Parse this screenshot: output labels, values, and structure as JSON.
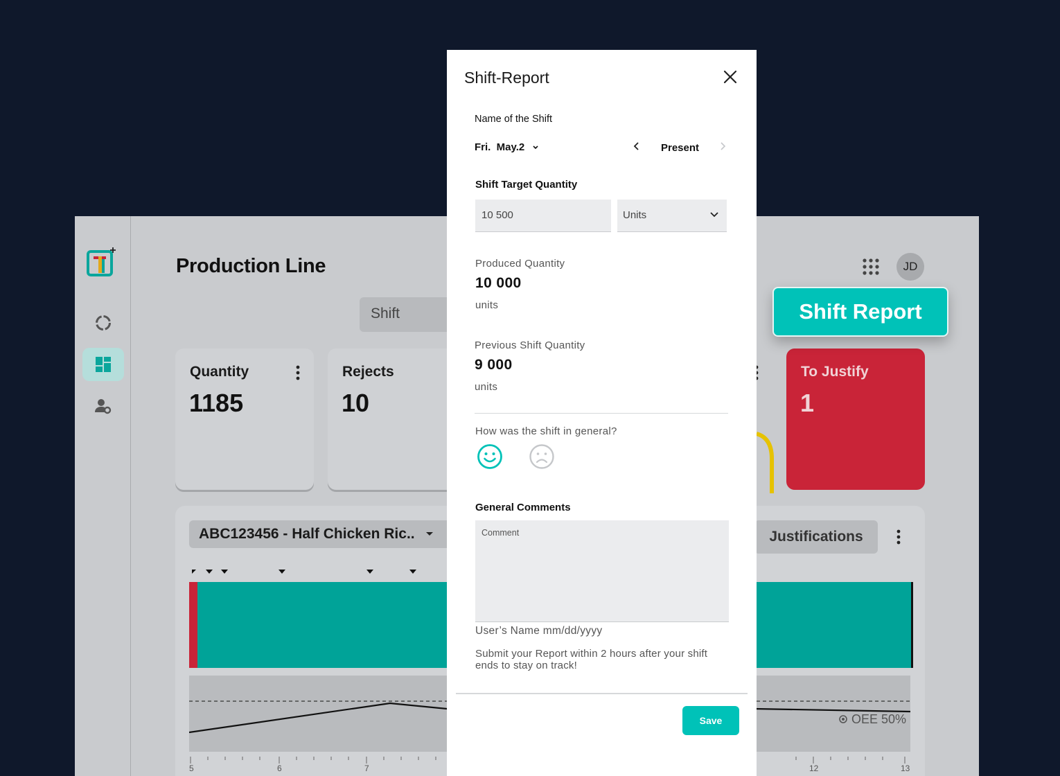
{
  "background_app": {
    "page_title": "Production Line",
    "avatar_initials": "JD",
    "shift_filter": "Shift",
    "cards": [
      {
        "title": "Quantity",
        "value": "1185"
      },
      {
        "title": "Rejects",
        "value": "10"
      },
      {
        "title": "To Justify",
        "value": "1"
      }
    ],
    "floating_button": "Shift Report",
    "product_select": "ABC123456 - Half Chicken Ric..",
    "justifications_button": "Justifications",
    "oee_label": "OEE 50%",
    "time_ticks": [
      "5",
      "6",
      "7",
      "12",
      "13"
    ],
    "sidebar_icons": [
      "app-logo",
      "progress-ring-icon",
      "dashboard-icon",
      "user-settings-icon"
    ]
  },
  "modal": {
    "title": "Shift-Report",
    "shift_name_label": "Name of the Shift",
    "date": "Fri.  May.2",
    "period": "Present",
    "target_label": "Shift Target Quantity",
    "target_value": "10 500",
    "unit": "Units",
    "produced_label": "Produced Quantity",
    "produced_value": "10 000",
    "produced_unit": "units",
    "previous_label": "Previous Shift Quantity",
    "previous_value": "9 000",
    "previous_unit": "units",
    "mood_question": "How was the shift in general?",
    "comments_label": "General Comments",
    "comment_placeholder": "Comment",
    "signature": "User’s Name mm/dd/yyyy",
    "helper_text": "Submit your Report within 2 hours after your shift ends to stay on track!",
    "save_label": "Save"
  },
  "colors": {
    "accent": "#00c2b8",
    "alert": "#c92438",
    "background": "#0f182b"
  }
}
